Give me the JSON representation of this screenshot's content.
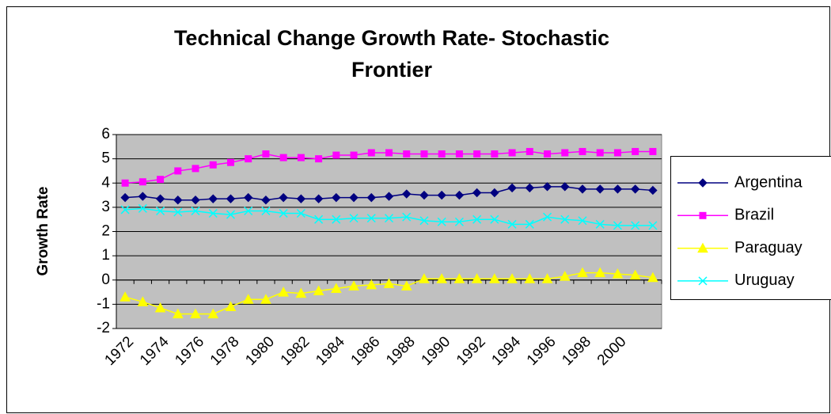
{
  "chart_data": {
    "type": "line",
    "title": [
      "Technical Change Growth Rate- Stochastic",
      "Frontier"
    ],
    "y_label": "Growth Rate",
    "categories": [
      "1972",
      null,
      "1974",
      null,
      "1976",
      null,
      "1978",
      null,
      "1980",
      null,
      "1982",
      null,
      "1984",
      null,
      "1986",
      null,
      "1988",
      null,
      "1990",
      null,
      "1992",
      null,
      "1994",
      null,
      "1996",
      null,
      "1998",
      null,
      "2000",
      null,
      null
    ],
    "series": [
      {
        "name": "Argentina",
        "color": "#000080",
        "marker": "diamond",
        "values": [
          3.4,
          3.45,
          3.35,
          3.3,
          3.3,
          3.35,
          3.35,
          3.4,
          3.3,
          3.4,
          3.35,
          3.35,
          3.4,
          3.4,
          3.4,
          3.45,
          3.55,
          3.5,
          3.5,
          3.5,
          3.6,
          3.6,
          3.8,
          3.8,
          3.85,
          3.85,
          3.75,
          3.75,
          3.75,
          3.75,
          3.7
        ]
      },
      {
        "name": "Brazil",
        "color": "#ff00ff",
        "marker": "square",
        "values": [
          4.0,
          4.05,
          4.15,
          4.5,
          4.6,
          4.75,
          4.85,
          5.0,
          5.2,
          5.05,
          5.05,
          5.0,
          5.15,
          5.15,
          5.25,
          5.25,
          5.2,
          5.2,
          5.2,
          5.2,
          5.2,
          5.2,
          5.25,
          5.3,
          5.2,
          5.25,
          5.3,
          5.25,
          5.25,
          5.3,
          5.3
        ]
      },
      {
        "name": "Paraguay",
        "color": "#ffff00",
        "marker": "triangle",
        "values": [
          -0.7,
          -0.9,
          -1.15,
          -1.4,
          -1.4,
          -1.4,
          -1.1,
          -0.8,
          -0.8,
          -0.5,
          -0.55,
          -0.45,
          -0.35,
          -0.25,
          -0.2,
          -0.15,
          -0.25,
          0.05,
          0.05,
          0.05,
          0.05,
          0.05,
          0.05,
          0.05,
          0.05,
          0.15,
          0.3,
          0.3,
          0.25,
          0.2,
          0.1
        ]
      },
      {
        "name": "Uruguay",
        "color": "#00ffff",
        "marker": "x",
        "values": [
          2.9,
          2.95,
          2.85,
          2.8,
          2.85,
          2.75,
          2.7,
          2.85,
          2.85,
          2.75,
          2.75,
          2.5,
          2.5,
          2.55,
          2.55,
          2.55,
          2.6,
          2.45,
          2.4,
          2.4,
          2.5,
          2.5,
          2.3,
          2.3,
          2.6,
          2.5,
          2.45,
          2.3,
          2.25,
          2.25,
          2.25
        ]
      }
    ],
    "ylim": [
      -2,
      6
    ],
    "yticks": [
      -2,
      -1,
      0,
      1,
      2,
      3,
      4,
      5,
      6
    ],
    "grid": true,
    "plot_background": "#c0c0c0",
    "legend": "right"
  }
}
